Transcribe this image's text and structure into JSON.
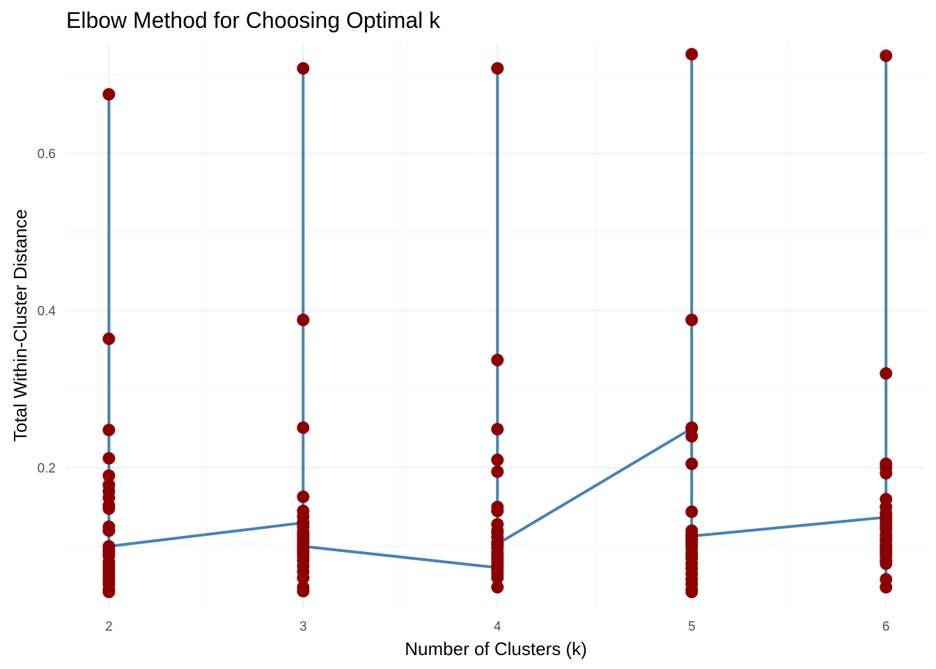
{
  "chart_data": {
    "type": "line",
    "title": "Elbow Method for Choosing Optimal k",
    "xlabel": "Number of Clusters (k)",
    "ylabel": "Total Within-Cluster Distance",
    "x_ticks": [
      "2",
      "3",
      "4",
      "5",
      "6"
    ],
    "y_ticks": [
      "0.2",
      "0.4",
      "0.6"
    ],
    "xlim": [
      1.78,
      6.2
    ],
    "ylim": [
      0.022,
      0.74
    ],
    "grid": true,
    "legend": "none",
    "colors": {
      "line": "#4682B4",
      "point": "#8B0000"
    },
    "series": [
      {
        "x": [
          2,
          2,
          2,
          2,
          2,
          2,
          2,
          2,
          2,
          2,
          2,
          2,
          2,
          2,
          2,
          2,
          2,
          2,
          2,
          2,
          2,
          2,
          2,
          2,
          2,
          3,
          3,
          3,
          3,
          3,
          3,
          3,
          3,
          3,
          3,
          3,
          3,
          3,
          3,
          3,
          3,
          3,
          3,
          3,
          3,
          3,
          3,
          3,
          3,
          3,
          4,
          4,
          4,
          4,
          4,
          4,
          4,
          4,
          4,
          4,
          4,
          4,
          4,
          4,
          4,
          4,
          4,
          4,
          4,
          4,
          4,
          4,
          4,
          4,
          4,
          5,
          5,
          5,
          5,
          5,
          5,
          5,
          5,
          5,
          5,
          5,
          5,
          5,
          5,
          5,
          5,
          5,
          5,
          5,
          5,
          5,
          5,
          5,
          5,
          5,
          6,
          6,
          6,
          6,
          6,
          6,
          6,
          6,
          6,
          6,
          6,
          6,
          6,
          6,
          6,
          6,
          6,
          6,
          6,
          6,
          6,
          6,
          6,
          6,
          6
        ],
        "y": [
          0.095,
          0.675,
          0.364,
          0.248,
          0.212,
          0.19,
          0.178,
          0.17,
          0.162,
          0.152,
          0.148,
          0.125,
          0.12,
          0.092,
          0.088,
          0.075,
          0.07,
          0.065,
          0.06,
          0.052,
          0.045,
          0.042,
          0.055,
          0.08,
          0.1,
          0.13,
          0.708,
          0.388,
          0.251,
          0.163,
          0.145,
          0.138,
          0.13,
          0.125,
          0.118,
          0.112,
          0.108,
          0.105,
          0.098,
          0.092,
          0.088,
          0.082,
          0.075,
          0.068,
          0.06,
          0.048,
          0.043,
          0.095,
          0.115,
          0.1,
          0.073,
          0.708,
          0.337,
          0.249,
          0.21,
          0.195,
          0.15,
          0.145,
          0.128,
          0.12,
          0.112,
          0.105,
          0.098,
          0.092,
          0.085,
          0.08,
          0.076,
          0.07,
          0.065,
          0.06,
          0.048,
          0.088,
          0.1,
          0.118,
          0.103,
          0.25,
          0.726,
          0.388,
          0.251,
          0.24,
          0.205,
          0.144,
          0.12,
          0.115,
          0.11,
          0.108,
          0.102,
          0.098,
          0.092,
          0.085,
          0.078,
          0.072,
          0.065,
          0.058,
          0.052,
          0.045,
          0.042,
          0.088,
          0.105,
          0.113,
          0.137,
          0.724,
          0.32,
          0.205,
          0.2,
          0.193,
          0.16,
          0.15,
          0.142,
          0.135,
          0.13,
          0.122,
          0.115,
          0.108,
          0.102,
          0.098,
          0.092,
          0.088,
          0.082,
          0.078,
          0.058,
          0.048,
          0.095,
          0.11,
          0.125
        ]
      }
    ]
  }
}
